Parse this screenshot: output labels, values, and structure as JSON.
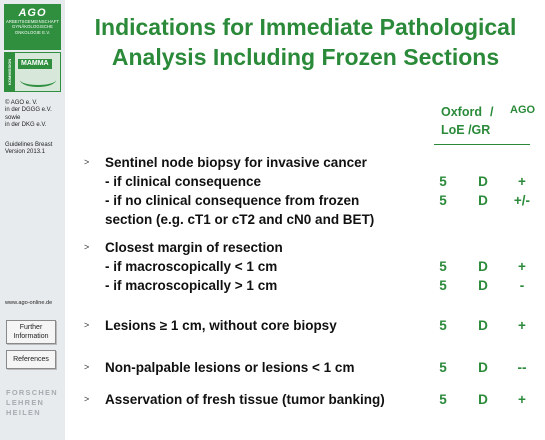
{
  "sidebar": {
    "logo": {
      "title": "AGO",
      "lines": [
        "ARBEITSGEMEINSCHAFT",
        "GYNÄKOLOGISCHE",
        "ONKOLOGIE E.V."
      ],
      "mamma_side": "KOMMISSION",
      "mamma_word": "MAMMA"
    },
    "org_lines": [
      "© AGO e. V.",
      "in der DGGG e.V.",
      "sowie",
      "in der DKG e.V."
    ],
    "guideline_lines": [
      "Guidelines Breast",
      "Version 2013.1"
    ],
    "website": "www.ago-online.de",
    "buttons": {
      "further_line1": "Further",
      "further_line2": "Information",
      "references": "References"
    },
    "slogan": [
      "FORSCHEN",
      "LEHREN",
      "HEILEN"
    ]
  },
  "title": {
    "line1": "Indications for Immediate Pathological",
    "line2": "Analysis Including Frozen Sections"
  },
  "header": {
    "oxford": "Oxford",
    "slash": "/",
    "loe_gr": "LoE /GR",
    "ago": "AGO"
  },
  "rows": [
    {
      "lines": [
        "Sentinel node biopsy for invasive cancer",
        "- if clinical consequence",
        "- if no clinical consequence from frozen",
        "section (e.g. cT1 or cT2 and cN0 and BET)"
      ],
      "values": [
        {
          "loe": "5",
          "gr": "D",
          "ago": "+"
        },
        {
          "loe": "5",
          "gr": "D",
          "ago": "+/-"
        }
      ]
    },
    {
      "lines": [
        "Closest margin of resection",
        "- if macroscopically < 1 cm",
        "- if macroscopically > 1 cm"
      ],
      "values": [
        {
          "loe": "5",
          "gr": "D",
          "ago": "+"
        },
        {
          "loe": "5",
          "gr": "D",
          "ago": "-"
        }
      ]
    },
    {
      "lines": [
        "Lesions ≥ 1 cm, without core biopsy"
      ],
      "values": [
        {
          "loe": "5",
          "gr": "D",
          "ago": "+"
        }
      ]
    },
    {
      "lines": [
        "Non-palpable lesions or lesions < 1 cm"
      ],
      "values": [
        {
          "loe": "5",
          "gr": "D",
          "ago": "--"
        }
      ]
    },
    {
      "lines": [
        "Asservation of fresh tissue (tumor banking)"
      ],
      "values": [
        {
          "loe": "5",
          "gr": "D",
          "ago": "+"
        }
      ]
    }
  ],
  "bullet_glyph": ">",
  "colors": {
    "accent_green": "#2a8a39",
    "sidebar_bg": "#e8ebee",
    "text_dark": "#111111"
  }
}
